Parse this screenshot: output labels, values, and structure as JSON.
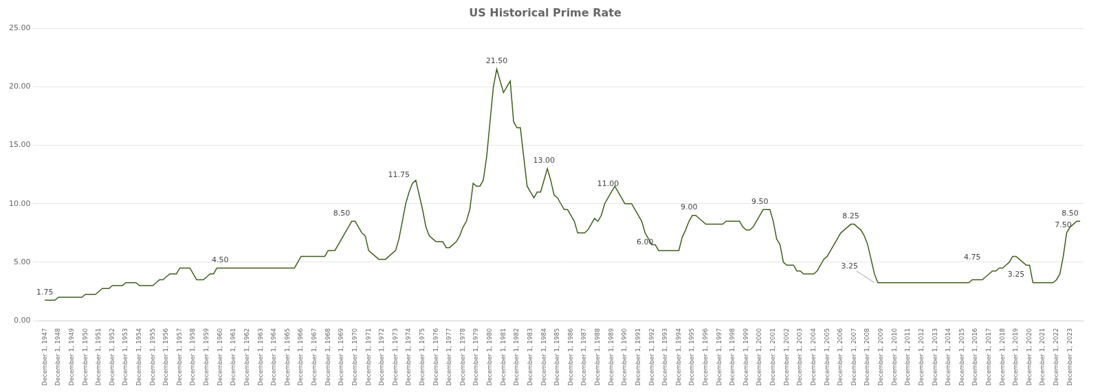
{
  "chart_data": {
    "type": "line",
    "title": "US Historical Prime Rate",
    "color": "#3d5c1a",
    "grid": "y",
    "xlim": [
      1946.5,
      2024.0
    ],
    "ylim": [
      0,
      25
    ],
    "yticks": [
      {
        "value": 0,
        "label": "0.00"
      },
      {
        "value": 5,
        "label": "5.00"
      },
      {
        "value": 10,
        "label": "10.00"
      },
      {
        "value": 15,
        "label": "15.00"
      },
      {
        "value": 20,
        "label": "20.00"
      },
      {
        "value": 25,
        "label": "25.00"
      }
    ],
    "xticks": [
      {
        "value": 1947,
        "label": "December 1, 1947"
      },
      {
        "value": 1948,
        "label": "December 1, 1948"
      },
      {
        "value": 1949,
        "label": "December 1, 1949"
      },
      {
        "value": 1950,
        "label": "December 1, 1950"
      },
      {
        "value": 1951,
        "label": "December 1, 1951"
      },
      {
        "value": 1952,
        "label": "December 1, 1952"
      },
      {
        "value": 1953,
        "label": "December 1, 1953"
      },
      {
        "value": 1954,
        "label": "December 1, 1954"
      },
      {
        "value": 1955,
        "label": "December 1, 1955"
      },
      {
        "value": 1956,
        "label": "December 1, 1956"
      },
      {
        "value": 1957,
        "label": "December 1, 1957"
      },
      {
        "value": 1958,
        "label": "December 1, 1958"
      },
      {
        "value": 1959,
        "label": "December 1, 1959"
      },
      {
        "value": 1960,
        "label": "December 1, 1960"
      },
      {
        "value": 1961,
        "label": "December 1, 1961"
      },
      {
        "value": 1962,
        "label": "December 1, 1962"
      },
      {
        "value": 1963,
        "label": "December 1, 1963"
      },
      {
        "value": 1964,
        "label": "December 1, 1964"
      },
      {
        "value": 1965,
        "label": "December 1, 1965"
      },
      {
        "value": 1966,
        "label": "December 1, 1966"
      },
      {
        "value": 1967,
        "label": "December 1, 1967"
      },
      {
        "value": 1968,
        "label": "December 1, 1968"
      },
      {
        "value": 1969,
        "label": "December 1, 1969"
      },
      {
        "value": 1970,
        "label": "December 1, 1970"
      },
      {
        "value": 1971,
        "label": "December 1, 1971"
      },
      {
        "value": 1972,
        "label": "December 1, 1972"
      },
      {
        "value": 1973,
        "label": "December 1, 1973"
      },
      {
        "value": 1974,
        "label": "December 1, 1974"
      },
      {
        "value": 1975,
        "label": "December 1, 1975"
      },
      {
        "value": 1976,
        "label": "December 1, 1976"
      },
      {
        "value": 1977,
        "label": "December 1, 1977"
      },
      {
        "value": 1978,
        "label": "December 1, 1978"
      },
      {
        "value": 1979,
        "label": "December 1, 1979"
      },
      {
        "value": 1980,
        "label": "December 1, 1980"
      },
      {
        "value": 1981,
        "label": "December 1, 1981"
      },
      {
        "value": 1982,
        "label": "December 1, 1982"
      },
      {
        "value": 1983,
        "label": "December 1, 1983"
      },
      {
        "value": 1984,
        "label": "December 1, 1984"
      },
      {
        "value": 1985,
        "label": "December 1, 1985"
      },
      {
        "value": 1986,
        "label": "December 1, 1986"
      },
      {
        "value": 1987,
        "label": "December 1, 1987"
      },
      {
        "value": 1988,
        "label": "December 1, 1988"
      },
      {
        "value": 1989,
        "label": "December 1, 1989"
      },
      {
        "value": 1990,
        "label": "December 1, 1990"
      },
      {
        "value": 1991,
        "label": "December 1, 1991"
      },
      {
        "value": 1992,
        "label": "December 1, 1992"
      },
      {
        "value": 1993,
        "label": "December 1, 1993"
      },
      {
        "value": 1994,
        "label": "December 1, 1994"
      },
      {
        "value": 1995,
        "label": "December 1, 1995"
      },
      {
        "value": 1996,
        "label": "December 1, 1996"
      },
      {
        "value": 1997,
        "label": "December 1, 1997"
      },
      {
        "value": 1998,
        "label": "December 1, 1998"
      },
      {
        "value": 1999,
        "label": "December 1, 1999"
      },
      {
        "value": 2000,
        "label": "December 1, 2000"
      },
      {
        "value": 2001,
        "label": "December 1, 2001"
      },
      {
        "value": 2002,
        "label": "December 1, 2002"
      },
      {
        "value": 2003,
        "label": "December 1, 2003"
      },
      {
        "value": 2004,
        "label": "December 1, 2004"
      },
      {
        "value": 2005,
        "label": "December 1, 2005"
      },
      {
        "value": 2006,
        "label": "December 1, 2006"
      },
      {
        "value": 2007,
        "label": "December 1, 2007"
      },
      {
        "value": 2008,
        "label": "December 1, 2008"
      },
      {
        "value": 2009,
        "label": "December 1, 2009"
      },
      {
        "value": 2010,
        "label": "December 1, 2010"
      },
      {
        "value": 2011,
        "label": "December 1, 2011"
      },
      {
        "value": 2012,
        "label": "December 1, 2012"
      },
      {
        "value": 2013,
        "label": "December 1, 2013"
      },
      {
        "value": 2014,
        "label": "December 1, 2014"
      },
      {
        "value": 2015,
        "label": "December 1, 2015"
      },
      {
        "value": 2016,
        "label": "December 1, 2016"
      },
      {
        "value": 2017,
        "label": "December 1, 2017"
      },
      {
        "value": 2018,
        "label": "December 1, 2018"
      },
      {
        "value": 2019,
        "label": "December 1, 2019"
      },
      {
        "value": 2020,
        "label": "December 1, 2020"
      },
      {
        "value": 2021,
        "label": "December 1, 2021"
      },
      {
        "value": 2022,
        "label": "December 1, 2022"
      },
      {
        "value": 2023,
        "label": "December 1, 2023"
      }
    ],
    "annotations": [
      {
        "text": "1.75",
        "x": 1947.0,
        "y": 1.75
      },
      {
        "text": "4.50",
        "x": 1960.0,
        "y": 4.5
      },
      {
        "text": "8.50",
        "x": 1969.0,
        "y": 8.5
      },
      {
        "text": "11.75",
        "x": 1973.25,
        "y": 11.75
      },
      {
        "text": "21.50",
        "x": 1980.5,
        "y": 21.5
      },
      {
        "text": "13.00",
        "x": 1984.0,
        "y": 13.0
      },
      {
        "text": "11.00",
        "x": 1988.75,
        "y": 11.0
      },
      {
        "text": "6.00",
        "x": 1991.5,
        "y": 6.0
      },
      {
        "text": "9.00",
        "x": 1994.75,
        "y": 9.0
      },
      {
        "text": "9.50",
        "x": 2000.0,
        "y": 9.5
      },
      {
        "text": "8.25",
        "x": 2006.75,
        "y": 8.25
      },
      {
        "text": "3.25",
        "x": 2008.5,
        "y": 3.25,
        "arrow": true
      },
      {
        "text": "4.75",
        "x": 2015.75,
        "y": 4.75
      },
      {
        "text": "3.25",
        "x": 2019.0,
        "y": 3.25
      },
      {
        "text": "7.50",
        "x": 2022.5,
        "y": 7.5
      },
      {
        "text": "8.50",
        "x": 2023.0,
        "y": 8.5
      }
    ],
    "x": [
      1947.0,
      1947.25,
      1947.5,
      1947.75,
      1948.0,
      1948.25,
      1948.5,
      1948.75,
      1949.0,
      1949.25,
      1949.5,
      1949.75,
      1950.0,
      1950.25,
      1950.5,
      1950.75,
      1951.0,
      1951.25,
      1951.5,
      1951.75,
      1952.0,
      1952.25,
      1952.5,
      1952.75,
      1953.0,
      1953.25,
      1953.5,
      1953.75,
      1954.0,
      1954.25,
      1954.5,
      1954.75,
      1955.0,
      1955.25,
      1955.5,
      1955.75,
      1956.0,
      1956.25,
      1956.5,
      1956.75,
      1957.0,
      1957.25,
      1957.5,
      1957.75,
      1958.0,
      1958.25,
      1958.5,
      1958.75,
      1959.0,
      1959.25,
      1959.5,
      1959.75,
      1960.0,
      1960.25,
      1960.5,
      1960.75,
      1961.0,
      1961.25,
      1961.5,
      1961.75,
      1962.0,
      1962.25,
      1962.5,
      1962.75,
      1963.0,
      1963.25,
      1963.5,
      1963.75,
      1964.0,
      1964.25,
      1964.5,
      1964.75,
      1965.0,
      1965.25,
      1965.5,
      1965.75,
      1966.0,
      1966.25,
      1966.5,
      1966.75,
      1967.0,
      1967.25,
      1967.5,
      1967.75,
      1968.0,
      1968.25,
      1968.5,
      1968.75,
      1969.0,
      1969.25,
      1969.5,
      1969.75,
      1970.0,
      1970.25,
      1970.5,
      1970.75,
      1971.0,
      1971.25,
      1971.5,
      1971.75,
      1972.0,
      1972.25,
      1972.5,
      1972.75,
      1973.0,
      1973.25,
      1973.5,
      1973.75,
      1974.0,
      1974.25,
      1974.5,
      1974.75,
      1975.0,
      1975.25,
      1975.5,
      1975.75,
      1976.0,
      1976.25,
      1976.5,
      1976.75,
      1977.0,
      1977.25,
      1977.5,
      1977.75,
      1978.0,
      1978.25,
      1978.5,
      1978.75,
      1979.0,
      1979.25,
      1979.5,
      1979.75,
      1980.0,
      1980.25,
      1980.5,
      1980.75,
      1981.0,
      1981.25,
      1981.5,
      1981.75,
      1982.0,
      1982.25,
      1982.5,
      1982.75,
      1983.0,
      1983.25,
      1983.5,
      1983.75,
      1984.0,
      1984.25,
      1984.5,
      1984.75,
      1985.0,
      1985.25,
      1985.5,
      1985.75,
      1986.0,
      1986.25,
      1986.5,
      1986.75,
      1987.0,
      1987.25,
      1987.5,
      1987.75,
      1988.0,
      1988.25,
      1988.5,
      1988.75,
      1989.0,
      1989.25,
      1989.5,
      1989.75,
      1990.0,
      1990.25,
      1990.5,
      1990.75,
      1991.0,
      1991.25,
      1991.5,
      1991.75,
      1992.0,
      1992.25,
      1992.5,
      1992.75,
      1993.0,
      1993.25,
      1993.5,
      1993.75,
      1994.0,
      1994.25,
      1994.5,
      1994.75,
      1995.0,
      1995.25,
      1995.5,
      1995.75,
      1996.0,
      1996.25,
      1996.5,
      1996.75,
      1997.0,
      1997.25,
      1997.5,
      1997.75,
      1998.0,
      1998.25,
      1998.5,
      1998.75,
      1999.0,
      1999.25,
      1999.5,
      1999.75,
      2000.0,
      2000.25,
      2000.5,
      2000.75,
      2001.0,
      2001.25,
      2001.5,
      2001.75,
      2002.0,
      2002.25,
      2002.5,
      2002.75,
      2003.0,
      2003.25,
      2003.5,
      2003.75,
      2004.0,
      2004.25,
      2004.5,
      2004.75,
      2005.0,
      2005.25,
      2005.5,
      2005.75,
      2006.0,
      2006.25,
      2006.5,
      2006.75,
      2007.0,
      2007.25,
      2007.5,
      2007.75,
      2008.0,
      2008.25,
      2008.5,
      2008.75,
      2009.0,
      2009.25,
      2009.5,
      2009.75,
      2010.0,
      2010.25,
      2010.5,
      2010.75,
      2011.0,
      2011.25,
      2011.5,
      2011.75,
      2012.0,
      2012.25,
      2012.5,
      2012.75,
      2013.0,
      2013.25,
      2013.5,
      2013.75,
      2014.0,
      2014.25,
      2014.5,
      2014.75,
      2015.0,
      2015.25,
      2015.5,
      2015.75,
      2016.0,
      2016.25,
      2016.5,
      2016.75,
      2017.0,
      2017.25,
      2017.5,
      2017.75,
      2018.0,
      2018.25,
      2018.5,
      2018.75,
      2019.0,
      2019.25,
      2019.5,
      2019.75,
      2020.0,
      2020.25,
      2020.5,
      2020.75,
      2021.0,
      2021.25,
      2021.5,
      2021.75,
      2022.0,
      2022.25,
      2022.5,
      2022.75,
      2023.0,
      2023.25,
      2023.5,
      2023.75
    ],
    "values": [
      1.75,
      1.75,
      1.75,
      1.75,
      2.0,
      2.0,
      2.0,
      2.0,
      2.0,
      2.0,
      2.0,
      2.0,
      2.25,
      2.25,
      2.25,
      2.25,
      2.5,
      2.75,
      2.75,
      2.75,
      3.0,
      3.0,
      3.0,
      3.0,
      3.25,
      3.25,
      3.25,
      3.25,
      3.0,
      3.0,
      3.0,
      3.0,
      3.0,
      3.25,
      3.5,
      3.5,
      3.75,
      4.0,
      4.0,
      4.0,
      4.5,
      4.5,
      4.5,
      4.5,
      4.0,
      3.5,
      3.5,
      3.5,
      3.75,
      4.0,
      4.0,
      4.5,
      4.5,
      4.5,
      4.5,
      4.5,
      4.5,
      4.5,
      4.5,
      4.5,
      4.5,
      4.5,
      4.5,
      4.5,
      4.5,
      4.5,
      4.5,
      4.5,
      4.5,
      4.5,
      4.5,
      4.5,
      4.5,
      4.5,
      4.5,
      5.0,
      5.5,
      5.5,
      5.5,
      5.5,
      5.5,
      5.5,
      5.5,
      5.5,
      6.0,
      6.0,
      6.0,
      6.5,
      7.0,
      7.5,
      8.0,
      8.5,
      8.5,
      8.0,
      7.5,
      7.25,
      6.0,
      5.75,
      5.5,
      5.25,
      5.25,
      5.25,
      5.5,
      5.75,
      6.0,
      7.0,
      8.5,
      10.0,
      11.0,
      11.75,
      12.0,
      10.75,
      9.5,
      8.0,
      7.25,
      7.0,
      6.75,
      6.75,
      6.75,
      6.25,
      6.25,
      6.5,
      6.75,
      7.25,
      8.0,
      8.5,
      9.5,
      11.75,
      11.5,
      11.5,
      12.0,
      14.0,
      17.0,
      20.0,
      21.5,
      20.5,
      19.5,
      20.0,
      20.5,
      17.0,
      16.5,
      16.5,
      14.0,
      11.5,
      11.0,
      10.5,
      11.0,
      11.0,
      12.0,
      13.0,
      12.0,
      10.75,
      10.5,
      10.0,
      9.5,
      9.5,
      9.0,
      8.5,
      7.5,
      7.5,
      7.5,
      7.75,
      8.25,
      8.75,
      8.5,
      9.0,
      10.0,
      10.5,
      11.0,
      11.5,
      11.0,
      10.5,
      10.0,
      10.0,
      10.0,
      9.5,
      9.0,
      8.5,
      7.5,
      7.0,
      6.5,
      6.5,
      6.0,
      6.0,
      6.0,
      6.0,
      6.0,
      6.0,
      6.0,
      7.15,
      7.75,
      8.5,
      9.0,
      9.0,
      8.75,
      8.5,
      8.25,
      8.25,
      8.25,
      8.25,
      8.25,
      8.25,
      8.5,
      8.5,
      8.5,
      8.5,
      8.5,
      8.0,
      7.75,
      7.75,
      8.0,
      8.5,
      9.0,
      9.5,
      9.5,
      9.5,
      8.5,
      7.0,
      6.5,
      5.0,
      4.75,
      4.75,
      4.75,
      4.25,
      4.25,
      4.0,
      4.0,
      4.0,
      4.0,
      4.25,
      4.75,
      5.25,
      5.5,
      6.0,
      6.5,
      7.0,
      7.5,
      7.75,
      8.0,
      8.25,
      8.25,
      8.0,
      7.75,
      7.25,
      6.5,
      5.25,
      4.0,
      3.25,
      3.25,
      3.25,
      3.25,
      3.25,
      3.25,
      3.25,
      3.25,
      3.25,
      3.25,
      3.25,
      3.25,
      3.25,
      3.25,
      3.25,
      3.25,
      3.25,
      3.25,
      3.25,
      3.25,
      3.25,
      3.25,
      3.25,
      3.25,
      3.25,
      3.25,
      3.25,
      3.25,
      3.5,
      3.5,
      3.5,
      3.5,
      3.75,
      4.0,
      4.25,
      4.25,
      4.5,
      4.5,
      4.75,
      5.0,
      5.5,
      5.5,
      5.25,
      5.0,
      4.75,
      4.75,
      3.25,
      3.25,
      3.25,
      3.25,
      3.25,
      3.25,
      3.25,
      3.5,
      4.0,
      5.5,
      7.5,
      8.0,
      8.25,
      8.5,
      8.5
    ]
  }
}
